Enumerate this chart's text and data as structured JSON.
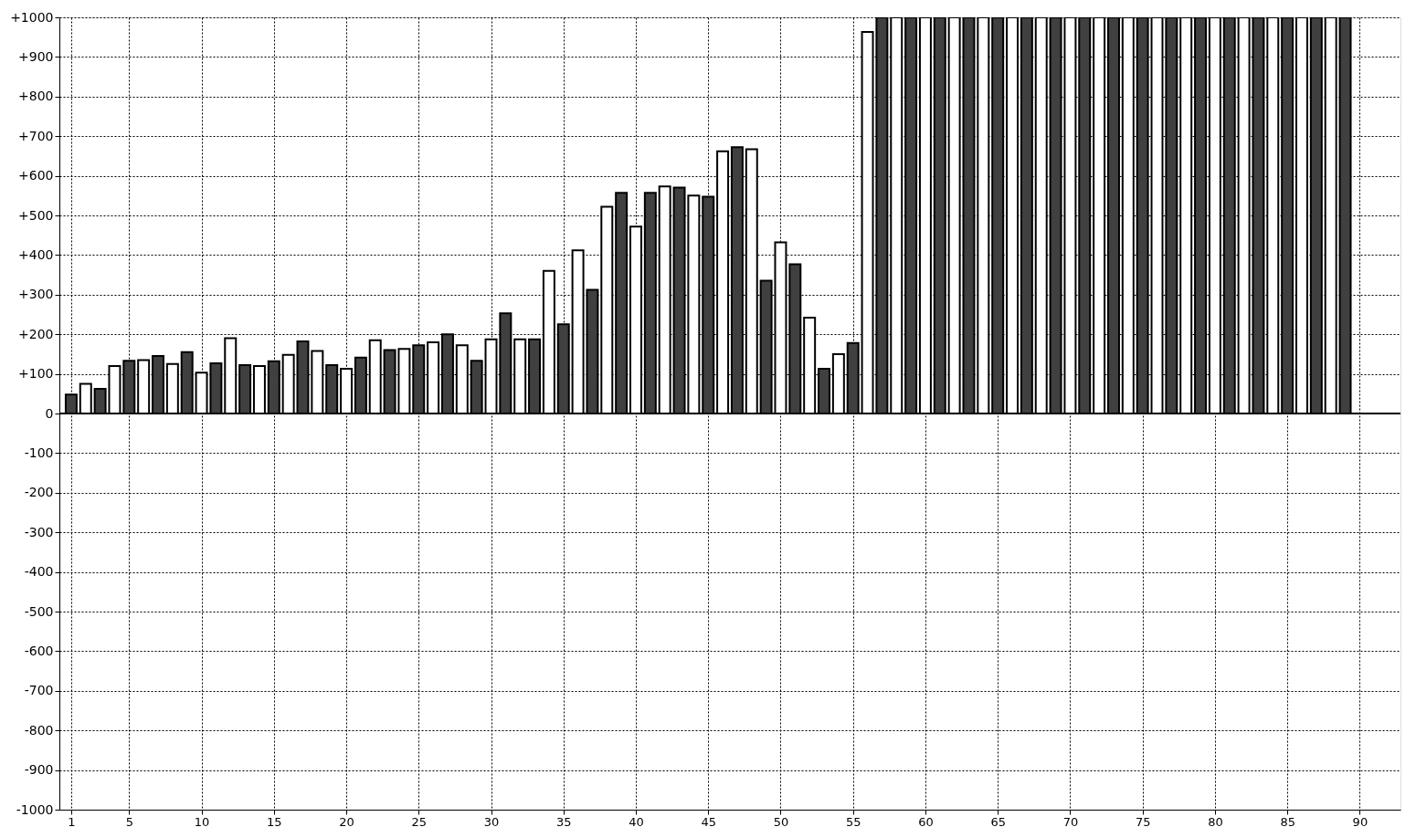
{
  "chart_data": {
    "type": "bar",
    "x": [
      1,
      2,
      3,
      4,
      5,
      6,
      7,
      8,
      9,
      10,
      11,
      12,
      13,
      14,
      15,
      16,
      17,
      18,
      19,
      20,
      21,
      22,
      23,
      24,
      25,
      26,
      27,
      28,
      29,
      30,
      31,
      32,
      33,
      34,
      35,
      36,
      37,
      38,
      39,
      40,
      41,
      42,
      43,
      44,
      45,
      46,
      47,
      48,
      49,
      50,
      51,
      52,
      53,
      54,
      55,
      56,
      57,
      58,
      59,
      60,
      61,
      62,
      63,
      64,
      65,
      66,
      67,
      68,
      69,
      70,
      71,
      72,
      73,
      74,
      75,
      76,
      77,
      78,
      79,
      80,
      81,
      82,
      83,
      84,
      85,
      86,
      87,
      88,
      89
    ],
    "values": [
      48,
      75,
      62,
      120,
      133,
      135,
      145,
      125,
      155,
      103,
      127,
      190,
      122,
      120,
      132,
      148,
      182,
      158,
      122,
      113,
      141,
      185,
      160,
      163,
      172,
      180,
      200,
      172,
      133,
      187,
      253,
      187,
      187,
      360,
      225,
      412,
      312,
      522,
      557,
      472,
      557,
      573,
      570,
      550,
      547,
      662,
      672,
      667,
      335,
      432,
      377,
      242,
      113,
      150,
      178,
      963,
      1000,
      1000,
      1000,
      1000,
      1000,
      1000,
      1000,
      1000,
      1000,
      1000,
      1000,
      1000,
      1000,
      1000,
      1000,
      1000,
      1000,
      1000,
      1000,
      1000,
      1000,
      1000,
      1000,
      1000,
      1000,
      1000,
      1000,
      1000,
      1000,
      1000,
      1000,
      1000,
      1000
    ],
    "colors": [
      "#404040",
      "#ffffff",
      "#404040",
      "#ffffff",
      "#404040",
      "#ffffff",
      "#404040",
      "#ffffff",
      "#404040",
      "#ffffff",
      "#404040",
      "#ffffff",
      "#404040",
      "#ffffff",
      "#404040",
      "#ffffff",
      "#404040",
      "#ffffff",
      "#404040",
      "#ffffff",
      "#404040",
      "#ffffff",
      "#404040",
      "#ffffff",
      "#404040",
      "#ffffff",
      "#404040",
      "#ffffff",
      "#404040",
      "#ffffff",
      "#404040",
      "#ffffff",
      "#404040",
      "#ffffff",
      "#404040",
      "#ffffff",
      "#404040",
      "#ffffff",
      "#404040",
      "#ffffff",
      "#404040",
      "#ffffff",
      "#404040",
      "#ffffff",
      "#404040",
      "#ffffff",
      "#404040",
      "#ffffff",
      "#404040",
      "#ffffff",
      "#404040",
      "#ffffff",
      "#404040",
      "#ffffff",
      "#404040",
      "#ffffff",
      "#404040",
      "#ffffff",
      "#404040",
      "#ffffff",
      "#404040",
      "#ffffff",
      "#404040",
      "#ffffff",
      "#404040",
      "#ffffff",
      "#404040",
      "#ffffff",
      "#404040",
      "#ffffff",
      "#404040",
      "#ffffff",
      "#404040",
      "#ffffff",
      "#404040",
      "#ffffff",
      "#404040",
      "#ffffff",
      "#404040",
      "#ffffff",
      "#404040",
      "#ffffff",
      "#404040",
      "#ffffff",
      "#404040",
      "#ffffff",
      "#404040",
      "#ffffff",
      "#404040"
    ],
    "xlim": [
      0.5,
      92.5
    ],
    "xticks": [
      1,
      5,
      10,
      15,
      20,
      25,
      30,
      35,
      40,
      45,
      50,
      55,
      60,
      65,
      70,
      75,
      80,
      85,
      90
    ],
    "ylim": [
      -1000,
      1000
    ],
    "yticks": [
      {
        "value": -1000,
        "label": "-1000"
      },
      {
        "value": -900,
        "label": "-900"
      },
      {
        "value": -800,
        "label": "-800"
      },
      {
        "value": -700,
        "label": "-700"
      },
      {
        "value": -600,
        "label": "-600"
      },
      {
        "value": -500,
        "label": "-500"
      },
      {
        "value": -400,
        "label": "-400"
      },
      {
        "value": -300,
        "label": "-300"
      },
      {
        "value": -200,
        "label": "-200"
      },
      {
        "value": -100,
        "label": "-100"
      },
      0,
      {
        "value": 100,
        "label": "+100"
      },
      {
        "value": 200,
        "label": "+200"
      },
      {
        "value": 300,
        "label": "+300"
      },
      {
        "value": 400,
        "label": "+400"
      },
      {
        "value": 500,
        "label": "+500"
      },
      {
        "value": 600,
        "label": "+600"
      },
      {
        "value": 700,
        "label": "+700"
      },
      {
        "value": 800,
        "label": "+800"
      },
      {
        "value": 900,
        "label": "+900"
      },
      {
        "value": 1000,
        "label": "+1000"
      }
    ],
    "grid": true
  }
}
